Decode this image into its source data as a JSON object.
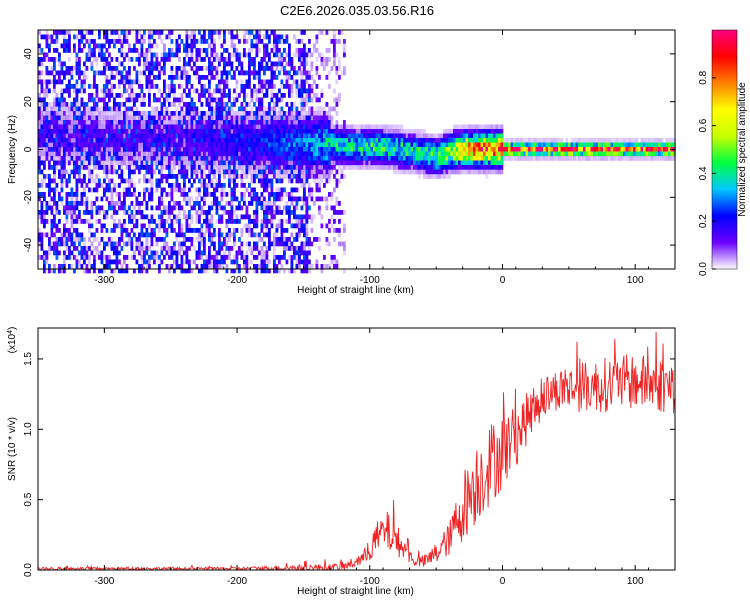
{
  "figure": {
    "title": "C2E6.2026.035.03.56.R16"
  },
  "chart_data": [
    {
      "type": "heatmap",
      "title": "",
      "xlabel": "Height of straight line (km)",
      "ylabel": "Frequency (Hz)",
      "xlim": [
        -350,
        130
      ],
      "ylim": [
        -50,
        50
      ],
      "xticks": [
        -300,
        -200,
        -100,
        0,
        100
      ],
      "yticks": [
        -40,
        -20,
        0,
        20,
        40
      ],
      "xtick_labels": [
        "-300",
        "-200",
        "-100",
        "0",
        "100"
      ],
      "ytick_labels": [
        "-40",
        "-20",
        "0",
        "20",
        "40"
      ],
      "colorbar": {
        "label": "Normalized spectral amplitude",
        "range": [
          0,
          1
        ],
        "ticks": [
          0.0,
          0.2,
          0.4,
          0.6,
          0.8
        ],
        "tick_labels": [
          "0.0",
          "0.2",
          "0.4",
          "0.6",
          "0.8"
        ],
        "colors": [
          "#ffffff",
          "#6a00ff",
          "#0000ff",
          "#00c8ff",
          "#00ff40",
          "#c8ff00",
          "#ffff00",
          "#ff8000",
          "#ff0000",
          "#ff0080"
        ]
      },
      "ridge": {
        "x": [
          -350,
          -300,
          -250,
          -200,
          -150,
          -130,
          -110,
          -90,
          -70,
          -50,
          -40,
          -30,
          -20,
          -10,
          0,
          50,
          100,
          130
        ],
        "frequency": [
          8,
          6,
          5,
          4,
          3,
          3,
          2,
          2,
          0,
          -2,
          0,
          1,
          1,
          1,
          1,
          1,
          1,
          1
        ],
        "amplitude": [
          0.15,
          0.15,
          0.15,
          0.2,
          0.3,
          0.4,
          0.45,
          0.45,
          0.45,
          0.5,
          0.6,
          0.75,
          0.85,
          0.9,
          0.95,
          0.95,
          0.95,
          0.95
        ]
      },
      "grid": false
    },
    {
      "type": "line",
      "title": "",
      "xlabel": "Height of straight line (km)",
      "ylabel": "SNR (10 * v/v)",
      "scale_label": "(x10",
      "scale_exponent": "4",
      "scale_label_close": ")",
      "xlim": [
        -350,
        130
      ],
      "ylim": [
        0,
        1.72
      ],
      "xticks": [
        -300,
        -200,
        -100,
        0,
        100
      ],
      "yticks": [
        0.0,
        0.5,
        1.0,
        1.5
      ],
      "xtick_labels": [
        "-300",
        "-200",
        "-100",
        "0",
        "100"
      ],
      "ytick_labels": [
        "0.0",
        "0.5",
        "1.0",
        "1.5"
      ],
      "color": "#ee2222",
      "envelope": {
        "x": [
          -350,
          -200,
          -120,
          -105,
          -95,
          -88,
          -80,
          -72,
          -65,
          -58,
          -50,
          -40,
          -30,
          -20,
          -10,
          0,
          10,
          20,
          30,
          40,
          60,
          80,
          100,
          130
        ],
        "y": [
          0.01,
          0.01,
          0.02,
          0.08,
          0.22,
          0.28,
          0.22,
          0.12,
          0.06,
          0.06,
          0.12,
          0.22,
          0.45,
          0.62,
          0.75,
          0.85,
          0.95,
          1.1,
          1.22,
          1.28,
          1.3,
          1.32,
          1.34,
          1.3
        ],
        "noise": [
          0.01,
          0.01,
          0.03,
          0.05,
          0.12,
          0.15,
          0.12,
          0.06,
          0.04,
          0.05,
          0.08,
          0.12,
          0.25,
          0.3,
          0.3,
          0.28,
          0.22,
          0.18,
          0.15,
          0.15,
          0.18,
          0.2,
          0.2,
          0.2
        ]
      },
      "grid": false
    }
  ]
}
